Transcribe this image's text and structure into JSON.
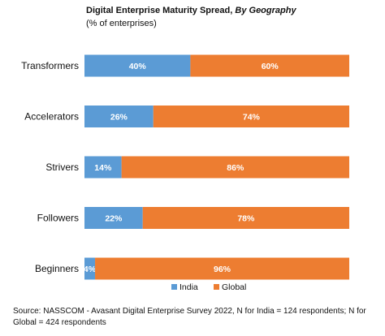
{
  "chart_data": {
    "type": "bar",
    "orientation": "horizontal",
    "stacked": true,
    "title": "Digital Enterprise Maturity Spread,",
    "title_italic": "By Geography",
    "subtitle": "(% of enterprises)",
    "categories": [
      "Transformers",
      "Accelerators",
      "Strivers",
      "Followers",
      "Beginners"
    ],
    "series": [
      {
        "name": "India",
        "color": "#5B9BD5",
        "values": [
          40,
          26,
          14,
          22,
          4
        ],
        "labels": [
          "40%",
          "26%",
          "14%",
          "22%",
          "4%"
        ]
      },
      {
        "name": "Global",
        "color": "#ED7D31",
        "values": [
          60,
          74,
          86,
          78,
          96
        ],
        "labels": [
          "60%",
          "74%",
          "86%",
          "78%",
          "96%"
        ]
      }
    ],
    "xlim": [
      0,
      100
    ],
    "grid": false,
    "legend_position": "bottom",
    "source": "Source: NASSCOM - Avasant Digital Enterprise Survey 2022, N for India = 124 respondents; N for Global = 424 respondents"
  }
}
